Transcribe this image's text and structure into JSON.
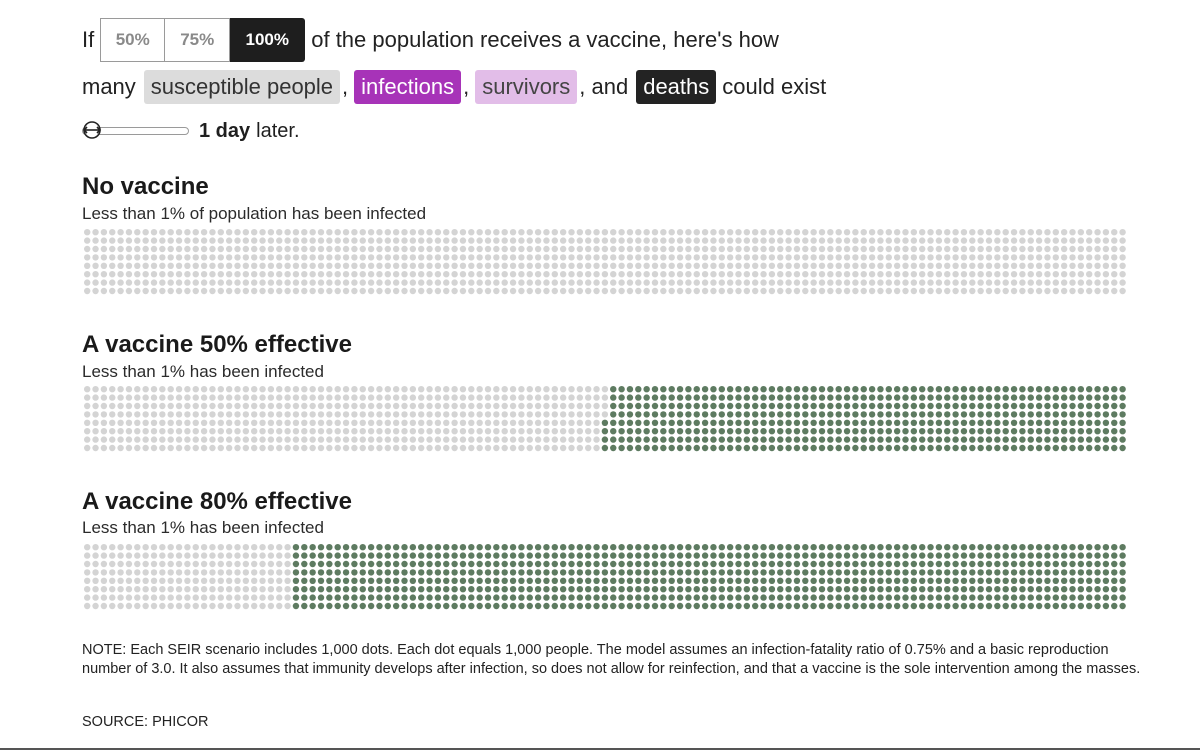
{
  "controls": {
    "prefix": "If",
    "options": [
      "50%",
      "75%",
      "100%"
    ],
    "selected_index": 2,
    "suffix": "of the population receives a vaccine, here's how"
  },
  "legend": {
    "lead": "many",
    "susceptible": "susceptible people",
    "comma1": ",",
    "infections": "infections",
    "comma2": ",",
    "survivors": "survivors",
    "and": ", and",
    "deaths": "deaths",
    "tail": "could exist"
  },
  "colors": {
    "susceptible": "#dcdcdc",
    "infections": "#a733b8",
    "survivors": "#e2bde8",
    "deaths": "#232323",
    "vaccinated": "#5e7b61",
    "dot_susceptible": "#d4d4d4"
  },
  "slider": {
    "value": "1 day",
    "suffix": "later.",
    "icon": "drag-handle-icon"
  },
  "scenarios": [
    {
      "title": "No vaccine",
      "subtitle": "Less than 1% of population has been infected",
      "vaccinated_fraction": 0.0
    },
    {
      "title": "A vaccine 50% effective",
      "subtitle": "Less than 1% has been infected",
      "vaccinated_fraction": 0.5
    },
    {
      "title": "A vaccine 80% effective",
      "subtitle": "Less than 1% has been infected",
      "vaccinated_fraction": 0.8
    }
  ],
  "chart_data": {
    "type": "dot-grid",
    "dots_per_scenario": 1000,
    "people_per_dot": 1000,
    "series": [
      {
        "name": "No vaccine",
        "unvaccinated": 1000,
        "vaccinated": 0
      },
      {
        "name": "A vaccine 50% effective",
        "unvaccinated": 500,
        "vaccinated": 500
      },
      {
        "name": "A vaccine 80% effective",
        "unvaccinated": 200,
        "vaccinated": 800
      }
    ]
  },
  "note": "NOTE: Each SEIR scenario includes 1,000 dots. Each dot equals 1,000 people. The model assumes an infection-fatality ratio of 0.75% and a basic reproduction number of 3.0. It also assumes that immunity develops after infection, so does not allow for reinfection, and that a vaccine is the sole intervention among the masses.",
  "source": "SOURCE: PHICOR"
}
